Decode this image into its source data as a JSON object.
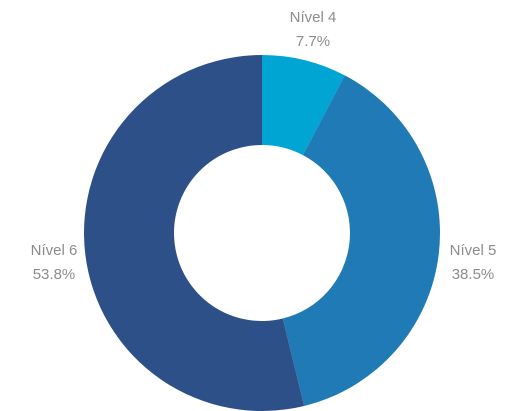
{
  "chart_data": {
    "type": "pie",
    "subtype": "donut",
    "categories": [
      "Nivel 4",
      "Nivel 5",
      "Nivel 6"
    ],
    "values": [
      7.7,
      38.5,
      53.8
    ],
    "labels": [
      {
        "name": "Nível 4",
        "value_text": "7.7%"
      },
      {
        "name": "Nível 5",
        "value_text": "38.5%"
      },
      {
        "name": "Nível 6",
        "value_text": "53.8%"
      }
    ],
    "colors": [
      "#00a5d4",
      "#1f7ab5",
      "#2e5089"
    ],
    "label_color": "#8c8c8c",
    "start_angle": "12 o'clock",
    "direction": "clockwise"
  }
}
